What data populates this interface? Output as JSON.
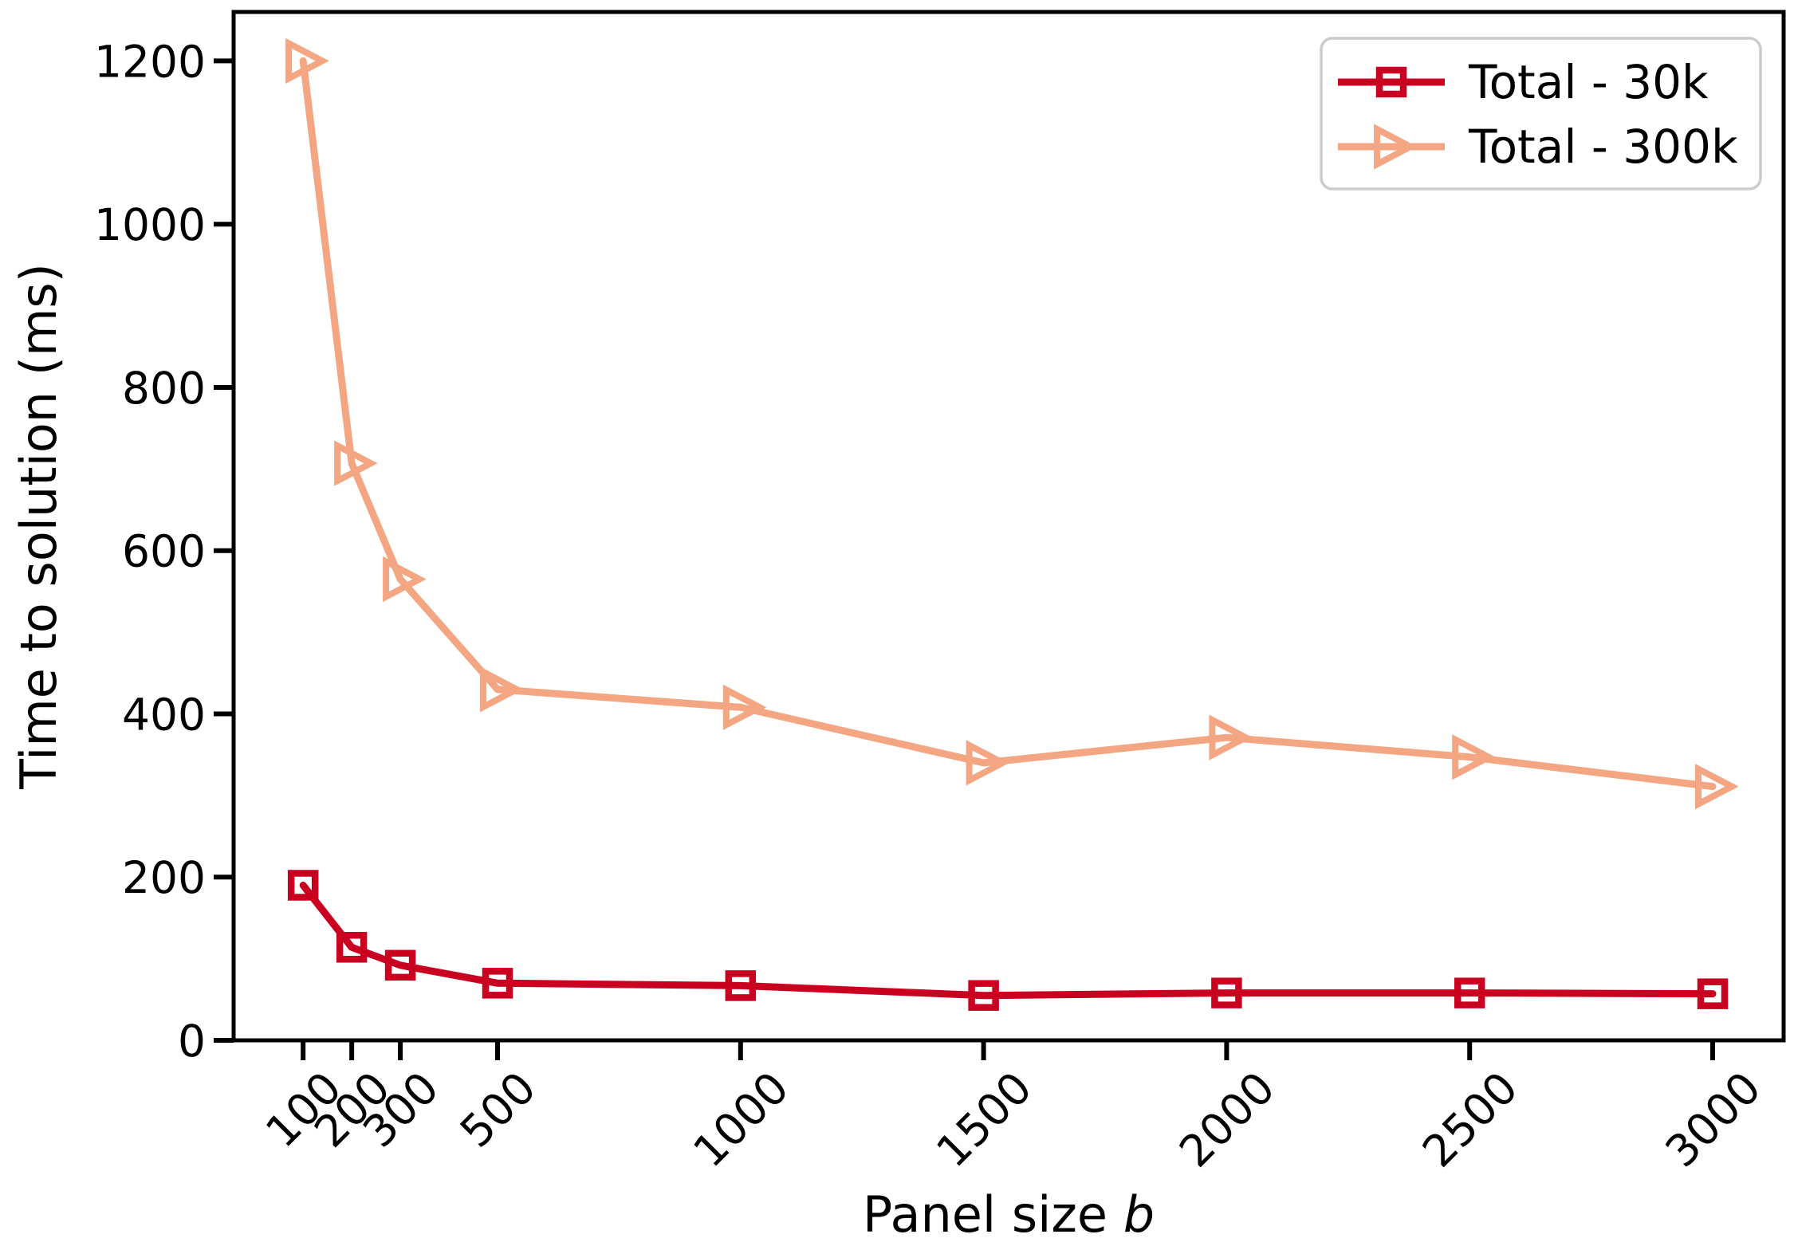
{
  "figure": {
    "background": "#ffffff",
    "axis_color": "#000000",
    "text_color": "#000000"
  },
  "chart_data": {
    "type": "line",
    "title": "",
    "xlabel_prefix": "Panel size ",
    "xlabel_italic": "b",
    "ylabel": "Time to solution (ms)",
    "x": [
      100,
      200,
      300,
      500,
      1000,
      1500,
      2000,
      2500,
      3000
    ],
    "xtick_labels": [
      "100",
      "200",
      "300",
      "500",
      "1000",
      "1500",
      "2000",
      "2500",
      "3000"
    ],
    "yticks": [
      0,
      200,
      400,
      600,
      800,
      1000,
      1200
    ],
    "xlim": [
      -43,
      3146
    ],
    "ylim": [
      0,
      1260
    ],
    "grid": false,
    "units": "ms",
    "legend": {
      "location": "upper right",
      "border_color": "#cccccc",
      "background": "#ffffff"
    },
    "series": [
      {
        "name": "Total - 30k",
        "color": "#ca0020",
        "marker": "square",
        "values": [
          190,
          114,
          92,
          70,
          67,
          55,
          58,
          58,
          57
        ]
      },
      {
        "name": "Total - 300k",
        "color": "#f4a582",
        "marker": "triangle-right",
        "values": [
          1200,
          707,
          565,
          430,
          408,
          340,
          371,
          347,
          311
        ]
      }
    ]
  }
}
